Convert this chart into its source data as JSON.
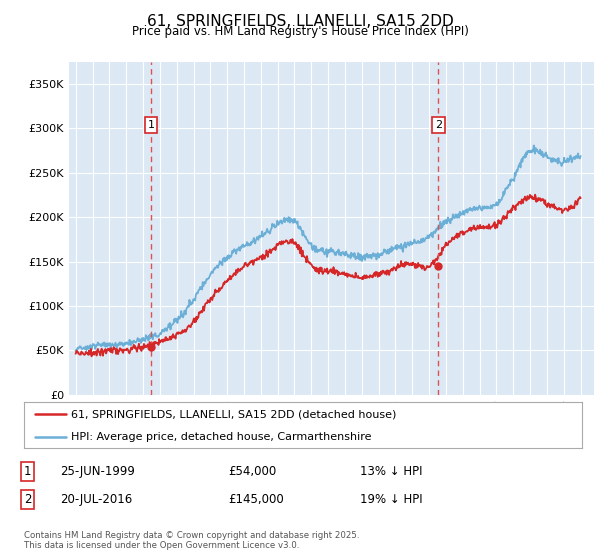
{
  "title": "61, SPRINGFIELDS, LLANELLI, SA15 2DD",
  "subtitle": "Price paid vs. HM Land Registry's House Price Index (HPI)",
  "background_color": "#ffffff",
  "plot_bg_color": "#dce9f5",
  "ylabel_ticks": [
    "£0",
    "£50K",
    "£100K",
    "£150K",
    "£200K",
    "£250K",
    "£300K",
    "£350K"
  ],
  "ytick_values": [
    0,
    50000,
    100000,
    150000,
    200000,
    250000,
    300000,
    350000
  ],
  "ylim": [
    0,
    375000
  ],
  "xlim_start": 1994.6,
  "xlim_end": 2025.8,
  "marker1_x": 1999.48,
  "marker1_y": 54000,
  "marker1_label": "1",
  "marker1_date": "25-JUN-1999",
  "marker1_price": "£54,000",
  "marker1_hpi": "13% ↓ HPI",
  "marker2_x": 2016.55,
  "marker2_y": 145000,
  "marker2_label": "2",
  "marker2_date": "20-JUL-2016",
  "marker2_price": "£145,000",
  "marker2_hpi": "19% ↓ HPI",
  "legend_line1": "61, SPRINGFIELDS, LLANELLI, SA15 2DD (detached house)",
  "legend_line2": "HPI: Average price, detached house, Carmarthenshire",
  "footer": "Contains HM Land Registry data © Crown copyright and database right 2025.\nThis data is licensed under the Open Government Licence v3.0.",
  "hpi_color": "#6baed6",
  "price_color": "#d62728",
  "grid_color": "#ffffff",
  "marker_box_color": "#d62728"
}
